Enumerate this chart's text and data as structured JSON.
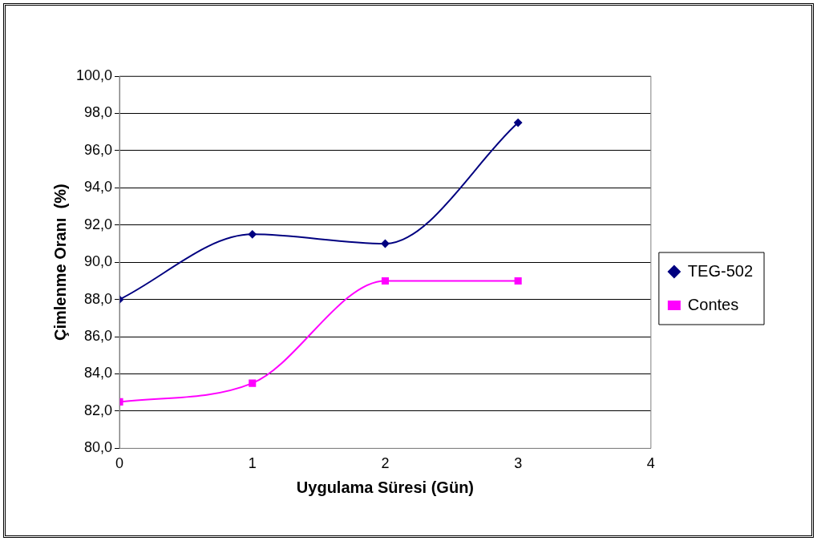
{
  "chart_data": {
    "type": "line",
    "xlabel": "Uygulama Süresi (Gün)",
    "ylabel": "Çimlenme Oranı  (%)",
    "x": [
      0,
      1,
      2,
      3
    ],
    "series": [
      {
        "name": "TEG-502",
        "color": "#000080",
        "values": [
          88,
          91.5,
          91,
          97.5
        ],
        "marker": "diamond"
      },
      {
        "name": "Contes",
        "color": "#ff00ff",
        "values": [
          82.5,
          83.5,
          89,
          89
        ],
        "marker": "square"
      }
    ],
    "xlim": [
      0,
      4
    ],
    "xticks": [
      0,
      1,
      2,
      3,
      4
    ],
    "ylim": [
      80,
      100
    ],
    "yticks": [
      {
        "value": 80,
        "label": "80,0"
      },
      {
        "value": 82,
        "label": "82,0"
      },
      {
        "value": 84,
        "label": "84,0"
      },
      {
        "value": 86,
        "label": "86,0"
      },
      {
        "value": 88,
        "label": "88,0"
      },
      {
        "value": 90,
        "label": "90,0"
      },
      {
        "value": 92,
        "label": "92,0"
      },
      {
        "value": 94,
        "label": "94,0"
      },
      {
        "value": 96,
        "label": "96,0"
      },
      {
        "value": 98,
        "label": "98,0"
      },
      {
        "value": 100,
        "label": "100,0"
      }
    ],
    "grid": "y",
    "legend": "right",
    "line_style": "solid"
  }
}
